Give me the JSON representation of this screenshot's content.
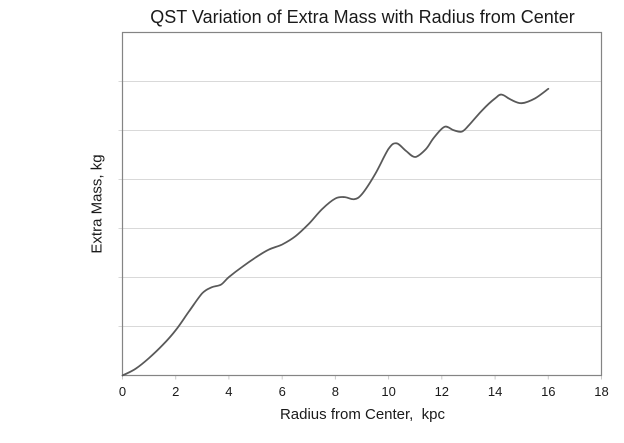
{
  "chart_data": {
    "type": "line",
    "title": "QST Variation of Extra Mass with Radius from Center",
    "xlabel": "Radius from Center,  kpc",
    "ylabel": "Extra Mass, kg",
    "xlim": [
      0,
      18
    ],
    "ylim": [
      0,
      1
    ],
    "x_ticks": [
      0,
      2,
      4,
      6,
      8,
      10,
      12,
      14,
      16,
      18
    ],
    "x_tick_labels": [
      "0",
      "2",
      "4",
      "6",
      "8",
      "10",
      "12",
      "14",
      "16",
      "18"
    ],
    "y_tick_labels": [],
    "y_gridlines": [
      0.1429,
      0.2857,
      0.4286,
      0.5714,
      0.7143,
      0.8571
    ],
    "grid": "horizontal-only",
    "legend": "none",
    "series": [
      {
        "name": "Extra Mass",
        "y_units": "relative (y-axis has no numeric labels)",
        "x": [
          0,
          0.5,
          1,
          1.5,
          2,
          2.5,
          3,
          3.35,
          3.7,
          4,
          4.5,
          5,
          5.5,
          6,
          6.5,
          7,
          7.5,
          8,
          8.35,
          8.7,
          9,
          9.5,
          10,
          10.3,
          10.65,
          11,
          11.4,
          11.7,
          12.1,
          12.45,
          12.75,
          13,
          13.5,
          14,
          14.25,
          14.6,
          15,
          15.5,
          16
        ],
        "y": [
          0,
          0.02,
          0.051,
          0.088,
          0.132,
          0.187,
          0.24,
          0.257,
          0.265,
          0.287,
          0.317,
          0.344,
          0.367,
          0.382,
          0.406,
          0.442,
          0.485,
          0.516,
          0.52,
          0.514,
          0.529,
          0.588,
          0.661,
          0.677,
          0.655,
          0.637,
          0.66,
          0.693,
          0.725,
          0.715,
          0.711,
          0.728,
          0.772,
          0.808,
          0.819,
          0.804,
          0.794,
          0.808,
          0.836
        ]
      }
    ],
    "colors": {
      "line": "#595959",
      "grid": "#d9d9d9",
      "axis": "#848484",
      "text": "#1a1a1a",
      "background": "#ffffff"
    }
  }
}
